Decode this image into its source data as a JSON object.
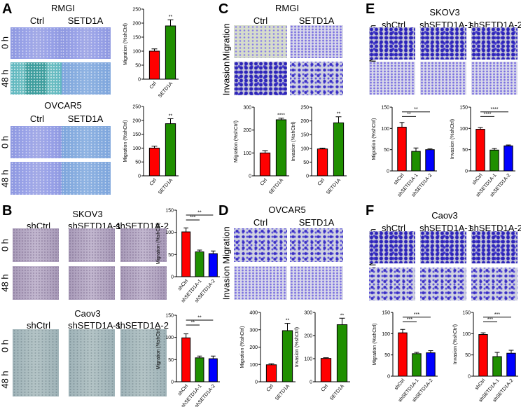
{
  "panels": {
    "A": {
      "label": "A",
      "rmgi": "RMGI",
      "ovcar5": "OVCAR5",
      "ctrl": "Ctrl",
      "setd1a": "SETD1A",
      "h0": "0 h",
      "h48": "48 h"
    },
    "B": {
      "label": "B",
      "skov3": "SKOV3",
      "caov3": "Caov3",
      "shctrl": "shCtrl",
      "sh1": "shSETD1A-1",
      "sh2": "shSETD1A-2",
      "h0": "0 h",
      "h48": "48 h"
    },
    "C": {
      "label": "C",
      "title": "RMGI",
      "ctrl": "Ctrl",
      "setd1a": "SETD1A",
      "migration": "Migration",
      "invasion": "Invasion"
    },
    "D": {
      "label": "D",
      "title": "OVCAR5",
      "ctrl": "Ctrl",
      "setd1a": "SETD1A",
      "migration": "Migration",
      "invasion": "Invasion"
    },
    "E": {
      "label": "E",
      "title": "SKOV3",
      "shctrl": "shCtrl",
      "sh1": "shSETD1A-1",
      "sh2": "shSETD1A-2",
      "migration": "Migration",
      "invasion": "Invasion"
    },
    "F": {
      "label": "F",
      "title": "Caov3",
      "shctrl": "shCtrl",
      "sh1": "shSETD1A-1",
      "sh2": "shSETD1A-2",
      "migration": "Migration",
      "invasion": "Invasion"
    }
  },
  "colors": {
    "red": "#ff0000",
    "green": "#1f8f00",
    "blue": "#0000ff"
  },
  "chart_data": [
    {
      "type": "bar",
      "panel": "A",
      "cell": "RMGI",
      "ylabel": "Migration (%shCtrl)",
      "ylim": [
        0,
        250
      ],
      "yticks": [
        0,
        50,
        100,
        150,
        200,
        250
      ],
      "categories": [
        "Ctrl",
        "SETD1A"
      ],
      "values": [
        100,
        190
      ],
      "errors": [
        8,
        22
      ],
      "sig": [
        "",
        "**"
      ],
      "brackets": []
    },
    {
      "type": "bar",
      "panel": "A",
      "cell": "OVCAR5",
      "ylabel": "Migration (%shCtrl)",
      "ylim": [
        0,
        250
      ],
      "yticks": [
        0,
        50,
        100,
        150,
        200,
        250
      ],
      "categories": [
        "Ctrl",
        "SETD1A"
      ],
      "values": [
        100,
        188
      ],
      "errors": [
        7,
        18
      ],
      "sig": [
        "",
        "**"
      ],
      "brackets": []
    },
    {
      "type": "bar",
      "panel": "B",
      "cell": "SKOV3",
      "ylabel": "Migration (%shCtrl)",
      "ylim": [
        0,
        150
      ],
      "yticks": [
        0,
        50,
        100,
        150
      ],
      "categories": [
        "shCtrl",
        "shSETD1A-1",
        "shSETD1A-2"
      ],
      "values": [
        101,
        56,
        52
      ],
      "errors": [
        9,
        4,
        6
      ],
      "sig": [
        "",
        "",
        ""
      ],
      "brackets": [
        "***",
        "**"
      ]
    },
    {
      "type": "bar",
      "panel": "B",
      "cell": "Caov3",
      "ylabel": "Migration (%shCtrl)",
      "ylim": [
        0,
        150
      ],
      "yticks": [
        0,
        50,
        100,
        150
      ],
      "categories": [
        "shCtrl",
        "shSETD1A-1",
        "shSETD1A-2"
      ],
      "values": [
        99,
        54,
        52
      ],
      "errors": [
        9,
        4,
        6
      ],
      "sig": [
        "",
        "",
        ""
      ],
      "brackets": [
        "**",
        "**"
      ]
    },
    {
      "type": "bar",
      "panel": "C",
      "cell": "Migration",
      "ylabel": "Migration (%shCtrl)",
      "ylim": [
        0,
        300
      ],
      "yticks": [
        0,
        100,
        200,
        300
      ],
      "categories": [
        "Ctrl",
        "SETD1A"
      ],
      "values": [
        100,
        245
      ],
      "errors": [
        10,
        7
      ],
      "sig": [
        "",
        "****"
      ],
      "brackets": []
    },
    {
      "type": "bar",
      "panel": "C",
      "cell": "Invasion",
      "ylabel": "Invasion (%shCtrl)",
      "ylim": [
        0,
        250
      ],
      "yticks": [
        0,
        50,
        100,
        150,
        200,
        250
      ],
      "categories": [
        "Ctrl",
        "SETD1A"
      ],
      "values": [
        98,
        193
      ],
      "errors": [
        3,
        22
      ],
      "sig": [
        "",
        "**"
      ],
      "brackets": []
    },
    {
      "type": "bar",
      "panel": "D",
      "cell": "Migration",
      "ylabel": "Migration (%shCtrl)",
      "ylim": [
        0,
        400
      ],
      "yticks": [
        0,
        100,
        200,
        300,
        400
      ],
      "categories": [
        "Ctrl",
        "SETD1A"
      ],
      "values": [
        98,
        295
      ],
      "errors": [
        6,
        42
      ],
      "sig": [
        "",
        "**"
      ],
      "brackets": []
    },
    {
      "type": "bar",
      "panel": "D",
      "cell": "Invasion",
      "ylabel": "Invasion (%shCtrl)",
      "ylim": [
        0,
        300
      ],
      "yticks": [
        0,
        100,
        200,
        300
      ],
      "categories": [
        "Ctrl",
        "SETD1A"
      ],
      "values": [
        101,
        247
      ],
      "errors": [
        3,
        28
      ],
      "sig": [
        "",
        "**"
      ],
      "brackets": []
    },
    {
      "type": "bar",
      "panel": "E",
      "cell": "Migration",
      "ylabel": "Migration (%shCtrl)",
      "ylim": [
        0,
        150
      ],
      "yticks": [
        0,
        50,
        100,
        150
      ],
      "categories": [
        "shCtrl",
        "shSETD1A-1",
        "shSETD1A-2"
      ],
      "values": [
        103,
        46,
        50
      ],
      "errors": [
        11,
        8,
        2
      ],
      "sig": [
        "",
        "",
        ""
      ],
      "brackets": [
        "**",
        "**"
      ]
    },
    {
      "type": "bar",
      "panel": "E",
      "cell": "Invasion",
      "ylabel": "Invasion (%shCtrl)",
      "ylim": [
        0,
        150
      ],
      "yticks": [
        0,
        50,
        100,
        150
      ],
      "categories": [
        "shCtrl",
        "shSETD1A-1",
        "shSETD1A-2"
      ],
      "values": [
        98,
        49,
        59
      ],
      "errors": [
        4,
        4,
        2
      ],
      "sig": [
        "",
        "",
        ""
      ],
      "brackets": [
        "****",
        "****"
      ]
    },
    {
      "type": "bar",
      "panel": "F",
      "cell": "Migration",
      "ylabel": "Migration (%shCtrl)",
      "ylim": [
        0,
        150
      ],
      "yticks": [
        0,
        50,
        100,
        150
      ],
      "categories": [
        "shCtrl",
        "shSETD1A-1",
        "shSETD1A-2"
      ],
      "values": [
        102,
        53,
        55
      ],
      "errors": [
        8,
        3,
        5
      ],
      "sig": [
        "",
        "",
        ""
      ],
      "brackets": [
        "***",
        "***"
      ]
    },
    {
      "type": "bar",
      "panel": "F",
      "cell": "Invasion",
      "ylabel": "Invasion (%shCtrl)",
      "ylim": [
        0,
        150
      ],
      "yticks": [
        0,
        50,
        100,
        150
      ],
      "categories": [
        "shCtrl",
        "shSETD1A-1",
        "shSETD1A-2"
      ],
      "values": [
        98,
        46,
        54
      ],
      "errors": [
        4,
        10,
        7
      ],
      "sig": [
        "",
        "",
        ""
      ],
      "brackets": [
        "***",
        "***"
      ]
    }
  ]
}
